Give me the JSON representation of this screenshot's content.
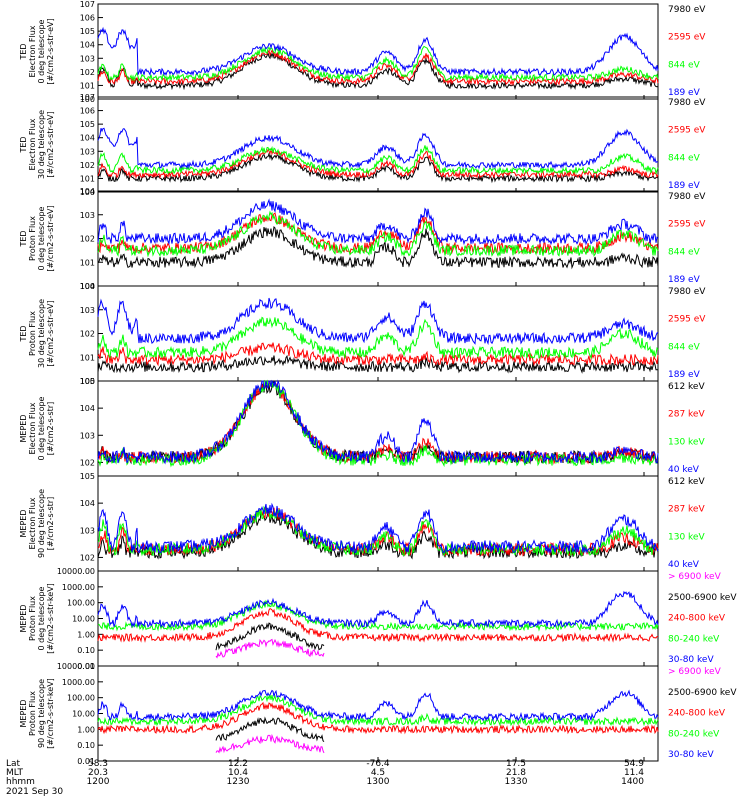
{
  "footer": {
    "row_labels": [
      "Lat",
      "MLT",
      "hhmm"
    ],
    "columns": [
      {
        "lat": "58.3",
        "mlt": "20.3",
        "hhmm": "1200"
      },
      {
        "lat": "12.2",
        "mlt": "10.4",
        "hhmm": "1230"
      },
      {
        "lat": "-76.4",
        "mlt": "4.5",
        "hhmm": "1300"
      },
      {
        "lat": "17.5",
        "mlt": "21.8",
        "hhmm": "1330"
      },
      {
        "lat": "54.9",
        "mlt": "11.4",
        "hhmm": "1400"
      }
    ],
    "date": "2021 Sep 30"
  },
  "colors": {
    "blue": "#0000ff",
    "red": "#ff0000",
    "green": "#00ff00",
    "black": "#000000",
    "magenta": "#ff00ff"
  },
  "chart_data": [
    {
      "type": "line",
      "id": "ted-e-0",
      "ylabel": [
        "TED",
        "Electron Flux",
        "0 deg telescope",
        "[#/cm2-s-str-eV]"
      ],
      "yscale": "log",
      "ylim_exp": [
        0,
        7
      ],
      "yticks": [
        "10^0",
        "10^1",
        "10^2",
        "10^3",
        "10^4",
        "10^5",
        "10^6",
        "10^7"
      ],
      "xlim": [
        1200,
        1400
      ],
      "series": [
        {
          "name": "7980 eV",
          "color": "#000000",
          "hump": [
            1.0,
            3.2
          ],
          "storm1": 2.2,
          "storm2": 1.5,
          "peak2": 2.8,
          "floor": 1.0,
          "cut": null
        },
        {
          "name": "2595 eV",
          "color": "#ff0000",
          "hump": [
            1.3,
            3.4
          ],
          "storm1": 2.0,
          "storm2": 1.8,
          "peak2": 3.2,
          "floor": 1.3,
          "cut": null
        },
        {
          "name": "844 eV",
          "color": "#00ff00",
          "hump": [
            1.6,
            3.6
          ],
          "storm1": 2.4,
          "storm2": 2.2,
          "peak2": 3.7,
          "floor": 1.5,
          "cut": null
        },
        {
          "name": "189 eV",
          "color": "#0000ff",
          "hump": [
            2.0,
            3.9
          ],
          "storm1": 5.0,
          "storm2": 4.6,
          "peak2": 4.4,
          "floor": 2.0,
          "cut": null
        }
      ]
    },
    {
      "type": "line",
      "id": "ted-e-30",
      "ylabel": [
        "TED",
        "Electron Flux",
        "30 deg telescope",
        "[#/cm2-s-str-eV]"
      ],
      "yscale": "log",
      "ylim_exp": [
        0,
        7
      ],
      "yticks": [
        "10^0",
        "10^1",
        "10^2",
        "10^3",
        "10^4",
        "10^5",
        "10^6",
        "10^7"
      ],
      "xlim": [
        1200,
        1400
      ],
      "series": [
        {
          "name": "7980 eV",
          "color": "#000000",
          "hump": [
            1.0,
            2.6
          ],
          "storm1": 1.6,
          "storm2": 1.4,
          "peak2": 2.4,
          "floor": 0.8,
          "cut": null
        },
        {
          "name": "2595 eV",
          "color": "#ff0000",
          "hump": [
            1.3,
            2.9
          ],
          "storm1": 1.9,
          "storm2": 1.7,
          "peak2": 2.8,
          "floor": 1.0,
          "cut": null
        },
        {
          "name": "844 eV",
          "color": "#00ff00",
          "hump": [
            1.6,
            3.1
          ],
          "storm1": 2.7,
          "storm2": 2.6,
          "peak2": 3.3,
          "floor": 1.3,
          "cut": null
        },
        {
          "name": "189 eV",
          "color": "#0000ff",
          "hump": [
            2.0,
            4.0
          ],
          "storm1": 4.6,
          "storm2": 4.4,
          "peak2": 4.2,
          "floor": 2.0,
          "cut": null
        }
      ]
    },
    {
      "type": "line",
      "id": "ted-p-0",
      "ylabel": [
        "TED",
        "Proton Flux",
        "0 deg telescope",
        "[#/cm2-s-str-eV]"
      ],
      "yscale": "log",
      "ylim_exp": [
        0,
        4
      ],
      "yticks": [
        "10^0",
        "10^1",
        "10^2",
        "10^3",
        "10^4"
      ],
      "xlim": [
        1200,
        1400
      ],
      "series": [
        {
          "name": "7980 eV",
          "color": "#000000",
          "hump": [
            1.0,
            2.3
          ],
          "storm1": 1.2,
          "storm2": 1.2,
          "peak2": 2.2,
          "floor": 0.8,
          "cut": null
        },
        {
          "name": "2595 eV",
          "color": "#ff0000",
          "hump": [
            1.6,
            2.9
          ],
          "storm1": 1.9,
          "storm2": 2.1,
          "peak2": 2.8,
          "floor": 1.5,
          "cut": null
        },
        {
          "name": "844 eV",
          "color": "#00ff00",
          "hump": [
            1.5,
            2.9
          ],
          "storm1": 2.0,
          "storm2": 2.2,
          "peak2": 2.6,
          "floor": 1.3,
          "cut": null
        },
        {
          "name": "189 eV",
          "color": "#0000ff",
          "hump": [
            2.0,
            3.4
          ],
          "storm1": 2.6,
          "storm2": 2.6,
          "peak2": 3.1,
          "floor": 1.8,
          "cut": null
        }
      ]
    },
    {
      "type": "line",
      "id": "ted-p-30",
      "ylabel": [
        "TED",
        "Proton Flux",
        "30 deg telescope",
        "[#/cm2-s-str-eV]"
      ],
      "yscale": "log",
      "ylim_exp": [
        0,
        4
      ],
      "yticks": [
        "10^0",
        "10^1",
        "10^2",
        "10^3",
        "10^4"
      ],
      "xlim": [
        1200,
        1400
      ],
      "series": [
        {
          "name": "7980 eV",
          "color": "#000000",
          "hump": [
            0.6,
            0.9
          ],
          "storm1": 0.7,
          "storm2": 0.6,
          "peak2": 0.8,
          "floor": 0.3,
          "cut": null
        },
        {
          "name": "2595 eV",
          "color": "#ff0000",
          "hump": [
            0.9,
            1.4
          ],
          "storm1": 1.3,
          "storm2": 0.9,
          "peak2": 1.0,
          "floor": 0.6,
          "cut": null
        },
        {
          "name": "844 eV",
          "color": "#00ff00",
          "hump": [
            1.2,
            2.5
          ],
          "storm1": 1.8,
          "storm2": 2.0,
          "peak2": 2.4,
          "floor": 1.1,
          "cut": null
        },
        {
          "name": "189 eV",
          "color": "#0000ff",
          "hump": [
            1.8,
            3.3
          ],
          "storm1": 3.3,
          "storm2": 2.4,
          "peak2": 3.3,
          "floor": 1.8,
          "cut": null
        }
      ]
    },
    {
      "type": "line",
      "id": "meped-e-0",
      "ylabel": [
        "MEPED",
        "Electron Flux",
        "0 deg telescope",
        "[#/cm2-s-str]"
      ],
      "yscale": "log",
      "ylim_exp": [
        1.5,
        5
      ],
      "yticks": [
        "10^2",
        "10^3",
        "10^4",
        "10^5"
      ],
      "xlim": [
        1200,
        1400
      ],
      "series": [
        {
          "name": "612 keV",
          "color": "#000000",
          "hump": [
            2.2,
            4.8
          ],
          "storm1": 2.4,
          "storm2": 2.3,
          "peak2": 2.6,
          "floor": 2.1,
          "cut": null
        },
        {
          "name": "287 keV",
          "color": "#ff0000",
          "hump": [
            2.2,
            4.85
          ],
          "storm1": 2.4,
          "storm2": 2.4,
          "peak2": 2.7,
          "floor": 2.1,
          "cut": null
        },
        {
          "name": "130 keV",
          "color": "#00ff00",
          "hump": [
            2.1,
            4.9
          ],
          "storm1": 2.3,
          "storm2": 2.2,
          "peak2": 2.4,
          "floor": 2.0,
          "cut": null
        },
        {
          "name": "40 keV",
          "color": "#0000ff",
          "hump": [
            2.2,
            4.95
          ],
          "storm1": 2.5,
          "storm2": 2.5,
          "peak2": 3.6,
          "floor": 2.0,
          "cut": null
        }
      ]
    },
    {
      "type": "line",
      "id": "meped-e-90",
      "ylabel": [
        "MEPED",
        "Electron Flux",
        "90 deg telescope",
        "[#/cm2-s-str]"
      ],
      "yscale": "log",
      "ylim_exp": [
        1.5,
        5
      ],
      "yticks": [
        "10^2",
        "10^3",
        "10^4",
        "10^5"
      ],
      "xlim": [
        1200,
        1400
      ],
      "series": [
        {
          "name": "612 keV",
          "color": "#000000",
          "hump": [
            2.2,
            3.5
          ],
          "storm1": 2.6,
          "storm2": 2.4,
          "peak2": 2.8,
          "floor": 2.0,
          "cut": null
        },
        {
          "name": "287 keV",
          "color": "#ff0000",
          "hump": [
            2.3,
            3.7
          ],
          "storm1": 2.9,
          "storm2": 2.7,
          "peak2": 3.2,
          "floor": 2.1,
          "cut": null
        },
        {
          "name": "130 keV",
          "color": "#00ff00",
          "hump": [
            2.3,
            3.65
          ],
          "storm1": 3.2,
          "storm2": 3.0,
          "peak2": 3.3,
          "floor": 2.0,
          "cut": null
        },
        {
          "name": "40 keV",
          "color": "#0000ff",
          "hump": [
            2.4,
            3.75
          ],
          "storm1": 3.6,
          "storm2": 3.4,
          "peak2": 3.7,
          "floor": 2.2,
          "cut": null
        }
      ]
    },
    {
      "type": "line",
      "id": "meped-p-0",
      "ylabel": [
        "MEPED",
        "Proton Flux",
        "0 deg telescope",
        "[#/cm2-s-str-keV]"
      ],
      "yscale": "log",
      "ylim_exp": [
        -2,
        4
      ],
      "yticks": [
        "0.01",
        "0.10",
        "1.00",
        "10.00",
        "100.00",
        "1000.00",
        "10000.00"
      ],
      "xlim": [
        1200,
        1400
      ],
      "series": [
        {
          "name": "> 6900 keV",
          "color": "#ff00ff",
          "hump": [
            -1.4,
            -0.5
          ],
          "storm1": null,
          "storm2": null,
          "peak2": null,
          "floor": null,
          "cut": true
        },
        {
          "name": "2500-6900 keV",
          "color": "#000000",
          "hump": [
            -1.0,
            0.5
          ],
          "storm1": null,
          "storm2": null,
          "peak2": null,
          "floor": null,
          "cut": true
        },
        {
          "name": "240-800 keV",
          "color": "#ff0000",
          "hump": [
            -0.2,
            1.4
          ],
          "storm1": -0.7,
          "storm2": -0.8,
          "peak2": -0.5,
          "floor": -0.9,
          "cut": true
        },
        {
          "name": "80-240 keV",
          "color": "#00ff00",
          "hump": [
            0.5,
            1.9
          ],
          "storm1": 0.0,
          "storm2": 0.2,
          "peak2": 0.5,
          "floor": 0.0,
          "cut": true
        },
        {
          "name": "30-80 keV",
          "color": "#0000ff",
          "hump": [
            0.7,
            2.0
          ],
          "storm1": 1.8,
          "storm2": 2.6,
          "peak2": 2.0,
          "floor": 0.5,
          "cut": true
        }
      ]
    },
    {
      "type": "line",
      "id": "meped-p-90",
      "ylabel": [
        "MEPED",
        "Proton Flux",
        "90 deg telescope",
        "[#/cm2-s-str-keV]"
      ],
      "yscale": "log",
      "ylim_exp": [
        -2,
        4
      ],
      "yticks": [
        "0.01",
        "0.10",
        "1.00",
        "10.00",
        "100.00",
        "1000.00",
        "10000.00"
      ],
      "xlim": [
        1200,
        1400
      ],
      "series": [
        {
          "name": "> 6900 keV",
          "color": "#ff00ff",
          "hump": [
            -1.4,
            -0.6
          ],
          "storm1": null,
          "storm2": null,
          "peak2": null,
          "floor": null,
          "cut": true
        },
        {
          "name": "2500-6900 keV",
          "color": "#000000",
          "hump": [
            -0.8,
            0.6
          ],
          "storm1": null,
          "storm2": null,
          "peak2": null,
          "floor": null,
          "cut": true
        },
        {
          "name": "240-800 keV",
          "color": "#ff0000",
          "hump": [
            0.0,
            1.5
          ],
          "storm1": -0.8,
          "storm2": -0.9,
          "peak2": -0.6,
          "floor": -0.9,
          "cut": true
        },
        {
          "name": "80-240 keV",
          "color": "#00ff00",
          "hump": [
            0.5,
            2.0
          ],
          "storm1": 0.4,
          "storm2": 0.4,
          "peak2": 0.8,
          "floor": 0.0,
          "cut": true
        },
        {
          "name": "30-80 keV",
          "color": "#0000ff",
          "hump": [
            0.8,
            2.3
          ],
          "storm1": 1.6,
          "storm2": 2.3,
          "peak2": 2.3,
          "floor": 0.6,
          "cut": true
        }
      ]
    }
  ]
}
